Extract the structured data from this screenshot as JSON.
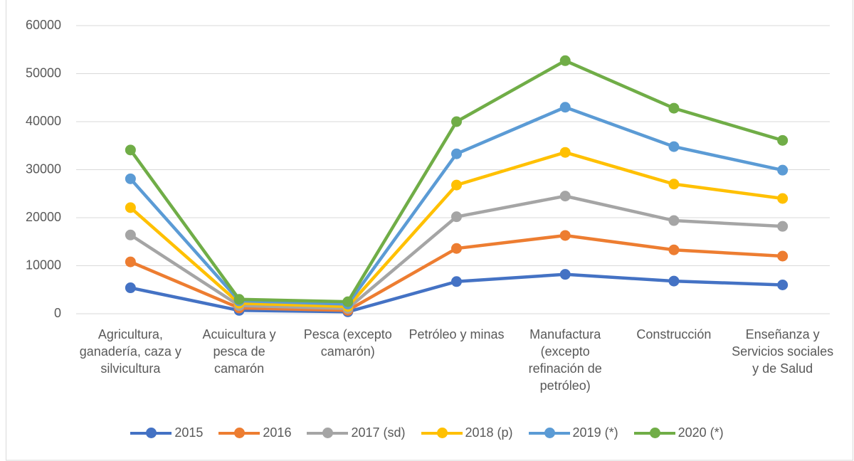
{
  "chart_data": {
    "type": "line",
    "categories": [
      "Agricultura, ganadería, caza y silvicultura",
      "Acuicultura y pesca de camarón",
      "Pesca (excepto camarón)",
      "Petróleo y minas",
      "Manufactura (excepto refinación de petróleo)",
      "Construcción",
      "Enseñanza y Servicios sociales y de Salud"
    ],
    "series": [
      {
        "name": "2015",
        "color": "#4472c4",
        "values": [
          5400,
          700,
          400,
          6700,
          8200,
          6800,
          6000
        ]
      },
      {
        "name": "2016",
        "color": "#ed7d31",
        "values": [
          10800,
          1200,
          700,
          13600,
          16300,
          13300,
          12000
        ]
      },
      {
        "name": "2017 (sd)",
        "color": "#a5a5a5",
        "values": [
          16400,
          1700,
          1100,
          20200,
          24500,
          19400,
          18200
        ]
      },
      {
        "name": "2018 (p)",
        "color": "#ffc000",
        "values": [
          22100,
          2200,
          1500,
          26800,
          33600,
          27000,
          24000
        ]
      },
      {
        "name": "2019 (*)",
        "color": "#5b9bd5",
        "values": [
          28100,
          2700,
          2000,
          33300,
          43000,
          34800,
          29900
        ]
      },
      {
        "name": "2020 (*)",
        "color": "#70ad47",
        "values": [
          34100,
          3000,
          2500,
          40000,
          52700,
          42800,
          36100
        ]
      }
    ],
    "ylim": [
      0,
      60000
    ],
    "yticks": [
      0,
      10000,
      20000,
      30000,
      40000,
      50000,
      60000
    ],
    "grid": true,
    "legend": "bottom"
  }
}
